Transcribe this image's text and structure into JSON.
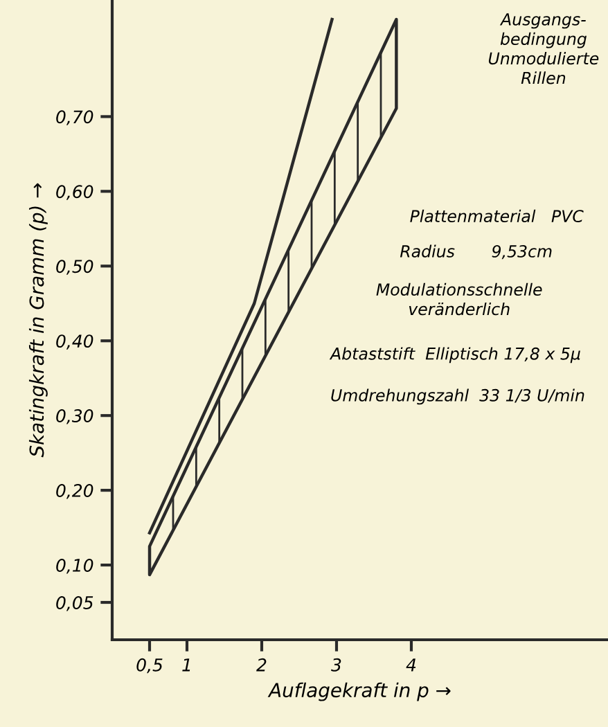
{
  "chart_data": {
    "type": "line",
    "xlabel": "Auflagekraft in p →",
    "ylabel": "Skatingkraft in Gramm (p) →",
    "xlim": [
      0,
      6.63
    ],
    "ylim": [
      0,
      0.856
    ],
    "xticks": [
      {
        "value": 0.5,
        "label": "0,5"
      },
      1,
      2,
      3,
      4
    ],
    "yticks": [
      {
        "value": 0.05,
        "label": "0,05"
      },
      {
        "value": 0.1,
        "label": "0,10"
      },
      {
        "value": 0.2,
        "label": "0,20"
      },
      {
        "value": 0.3,
        "label": "0,30"
      },
      {
        "value": 0.4,
        "label": "0,40"
      },
      {
        "value": 0.5,
        "label": "0,50"
      },
      {
        "value": 0.6,
        "label": "0,60"
      },
      {
        "value": 0.7,
        "label": "0,70"
      }
    ],
    "grid": false,
    "legend": false,
    "series": [
      {
        "color": "#2a2a2a",
        "x": [
          0.5,
          1.9,
          2.94
        ],
        "values": [
          0.143,
          0.45,
          0.83
        ]
      },
      {
        "color": "#2a2a2a",
        "x": [
          0.5,
          3.8
        ],
        "values": [
          null,
          null
        ],
        "lower": [
          0.087,
          0.711
        ],
        "upper": [
          0.125,
          0.83
        ]
      }
    ],
    "annotations": [
      "Ausgangs-\nbedingung\nUnmodulierte\nRillen",
      "Plattenmaterial   PVC",
      "Radius       9,53cm",
      "Modulationsschnelle\nveränderlich",
      "Abtaststift  Elliptisch 17,8 x 5µ",
      "Umdrehungszahl  33 1/3 U/min"
    ]
  }
}
